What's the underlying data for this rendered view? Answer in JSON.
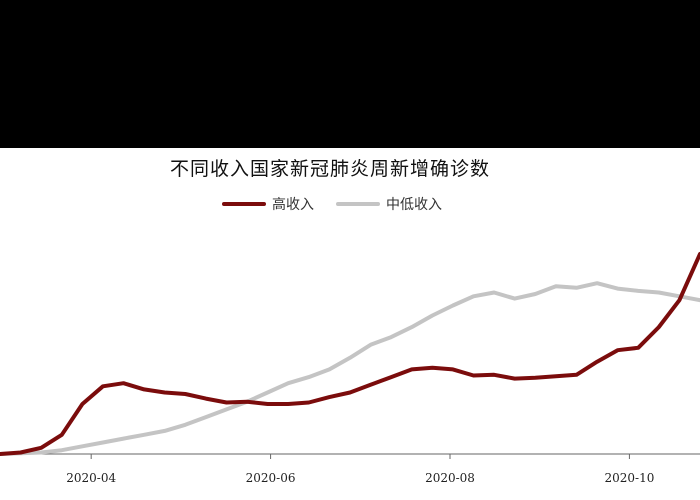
{
  "chart_data": {
    "type": "line",
    "title": "不同收入国家新冠肺炎周新增确诊数",
    "xlabel": "",
    "ylabel": "",
    "x_ticks": [
      "2020-04",
      "2020-06",
      "2020-08",
      "2020-10"
    ],
    "grid": false,
    "legend_position": "top-center",
    "x": [
      "2020-03-01",
      "2020-03-08",
      "2020-03-15",
      "2020-03-22",
      "2020-03-29",
      "2020-04-05",
      "2020-04-12",
      "2020-04-19",
      "2020-04-26",
      "2020-05-03",
      "2020-05-10",
      "2020-05-17",
      "2020-05-24",
      "2020-05-31",
      "2020-06-07",
      "2020-06-14",
      "2020-06-21",
      "2020-06-28",
      "2020-07-05",
      "2020-07-12",
      "2020-07-19",
      "2020-07-26",
      "2020-08-02",
      "2020-08-09",
      "2020-08-16",
      "2020-08-23",
      "2020-08-30",
      "2020-09-06",
      "2020-09-13",
      "2020-09-20",
      "2020-09-27",
      "2020-10-04",
      "2020-10-11",
      "2020-10-18",
      "2020-10-25"
    ],
    "series": [
      {
        "name": "高收入",
        "color": "#7b0c0c",
        "values": [
          0,
          2,
          8,
          25,
          65,
          88,
          92,
          84,
          80,
          78,
          72,
          67,
          68,
          65,
          65,
          67,
          74,
          80,
          90,
          100,
          110,
          112,
          110,
          102,
          103,
          98,
          99,
          101,
          103,
          120,
          135,
          138,
          165,
          200,
          260
        ]
      },
      {
        "name": "中低收入",
        "color": "#c4c4c4",
        "values": [
          0,
          1,
          2,
          5,
          10,
          15,
          20,
          25,
          30,
          38,
          48,
          58,
          68,
          80,
          92,
          100,
          110,
          125,
          142,
          152,
          165,
          180,
          193,
          205,
          210,
          202,
          208,
          218,
          216,
          222,
          215,
          212,
          210,
          205,
          200
        ]
      }
    ]
  }
}
